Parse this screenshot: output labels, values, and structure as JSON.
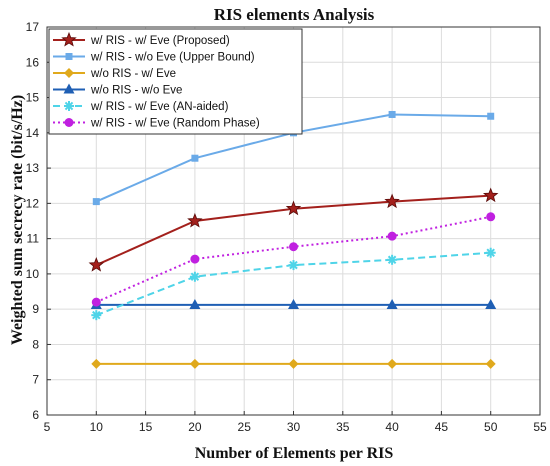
{
  "chart_data": {
    "type": "line",
    "title": "RIS elements Analysis",
    "xlabel": "Number of Elements per RIS",
    "ylabel": "Weighted sum secrecy rate (bit/s/Hz)",
    "xlim": [
      5,
      55
    ],
    "ylim": [
      6,
      17
    ],
    "x_ticks": [
      5,
      10,
      15,
      20,
      25,
      30,
      35,
      40,
      45,
      50,
      55
    ],
    "y_ticks": [
      6,
      7,
      8,
      9,
      10,
      11,
      12,
      13,
      14,
      15,
      16,
      17
    ],
    "grid": true,
    "legend_position": "top-left",
    "x": [
      10,
      20,
      30,
      40,
      50
    ],
    "series": [
      {
        "name": "w/ RIS - w/ Eve (Proposed)",
        "values": [
          10.25,
          11.5,
          11.85,
          12.05,
          12.22
        ],
        "color": "#a3201c",
        "marker": "star",
        "dash": "solid"
      },
      {
        "name": "w/ RIS - w/o Eve  (Upper Bound)",
        "values": [
          12.05,
          13.28,
          14.0,
          14.52,
          14.47
        ],
        "color": "#6aaae8",
        "marker": "square",
        "dash": "solid"
      },
      {
        "name": "w/o RIS - w/ Eve",
        "values": [
          7.45,
          7.45,
          7.45,
          7.45,
          7.45
        ],
        "color": "#e0a91c",
        "marker": "diamond",
        "dash": "solid"
      },
      {
        "name": "w/o RIS - w/o Eve",
        "values": [
          9.12,
          9.12,
          9.12,
          9.12,
          9.12
        ],
        "color": "#1f5fb4",
        "marker": "triangle",
        "dash": "solid"
      },
      {
        "name": "w/ RIS - w/ Eve (AN-aided)",
        "values": [
          8.83,
          9.92,
          10.25,
          10.4,
          10.6
        ],
        "color": "#4fd4e8",
        "marker": "asterisk",
        "dash": "dashed"
      },
      {
        "name": "w/ RIS - w/ Eve (Random Phase)",
        "values": [
          9.2,
          10.42,
          10.77,
          11.07,
          11.62
        ],
        "color": "#c020e0",
        "marker": "circle",
        "dash": "dotted"
      }
    ]
  }
}
